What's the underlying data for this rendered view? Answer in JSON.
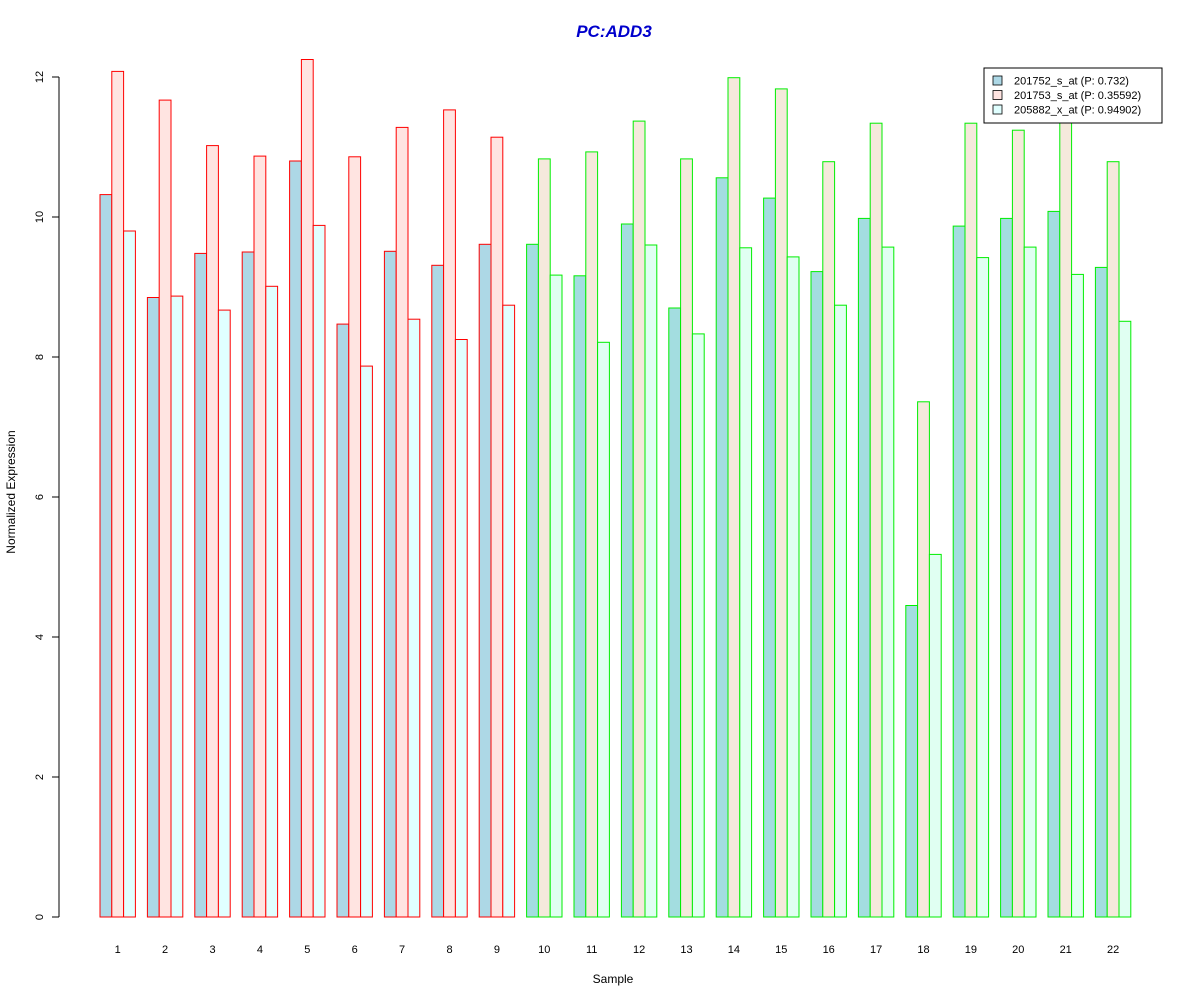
{
  "chart_data": {
    "type": "bar",
    "title": "PC:ADD3",
    "title_color": "#0000cc",
    "xlabel": "Sample",
    "ylabel": "Normalized Expression",
    "ylim": [
      0,
      12.4
    ],
    "y_ticks": [
      0,
      2,
      4,
      6,
      8,
      10,
      12
    ],
    "grid": false,
    "legend_position": "top-right",
    "categories": [
      "1",
      "2",
      "3",
      "4",
      "5",
      "6",
      "7",
      "8",
      "9",
      "10",
      "11",
      "12",
      "13",
      "14",
      "15",
      "16",
      "17",
      "18",
      "19",
      "20",
      "21",
      "22"
    ],
    "group_border_colors": [
      "#ff0000",
      "#ff0000",
      "#ff0000",
      "#ff0000",
      "#ff0000",
      "#ff0000",
      "#ff0000",
      "#ff0000",
      "#ff0000",
      "#00ee00",
      "#00ee00",
      "#00ee00",
      "#00ee00",
      "#00ee00",
      "#00ee00",
      "#00ee00",
      "#00ee00",
      "#00ee00",
      "#00ee00",
      "#00ee00",
      "#00ee00",
      "#00ee00"
    ],
    "series": [
      {
        "name": "201752_s_at (P: 0.732)",
        "fill_by_group": {
          "#ff0000": "#add8e6",
          "#00ee00": "#a3dde0"
        },
        "legend_fill": "#add8e6",
        "values": [
          10.32,
          8.85,
          9.48,
          9.5,
          10.8,
          8.47,
          9.51,
          9.31,
          9.61,
          9.61,
          9.16,
          9.9,
          8.7,
          10.56,
          10.27,
          9.22,
          9.98,
          4.45,
          9.87,
          9.98,
          10.08,
          9.28
        ]
      },
      {
        "name": "201753_s_at (P: 0.35592)",
        "fill_by_group": {
          "#ff0000": "#ffe4e1",
          "#00ee00": "#f5e9dc"
        },
        "legend_fill": "#ffe4e1",
        "values": [
          12.08,
          11.67,
          11.02,
          10.87,
          12.25,
          10.86,
          11.28,
          11.53,
          11.14,
          10.83,
          10.93,
          11.37,
          10.83,
          11.99,
          11.83,
          10.79,
          11.34,
          7.36,
          11.34,
          11.24,
          11.36,
          10.79
        ]
      },
      {
        "name": "205882_x_at (P: 0.94902)",
        "fill_by_group": {
          "#ff0000": "#e0ffff",
          "#00ee00": "#e0fff2"
        },
        "legend_fill": "#e0ffff",
        "values": [
          9.8,
          8.87,
          8.67,
          9.01,
          9.88,
          7.87,
          8.54,
          8.25,
          8.74,
          9.17,
          8.21,
          9.6,
          8.33,
          9.56,
          9.43,
          8.74,
          9.57,
          5.18,
          9.42,
          9.57,
          9.18,
          8.51
        ]
      }
    ]
  }
}
